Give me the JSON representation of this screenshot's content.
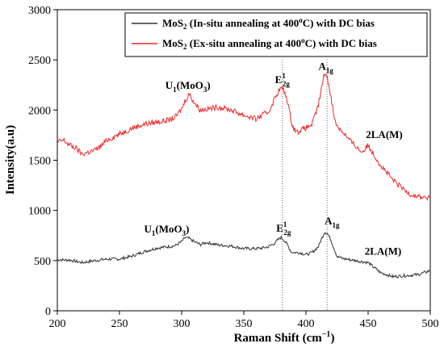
{
  "chart_data": {
    "type": "line",
    "xlabel": "Raman Shift (cm",
    "xlabel_exp": "−1",
    "xlabel_end": ")",
    "ylabel": "Intensity(a.u)",
    "xlim": [
      200,
      500
    ],
    "ylim": [
      0,
      3000
    ],
    "xticks": [
      "200",
      "250",
      "300",
      "350",
      "400",
      "450",
      "500"
    ],
    "yticks": [
      "0",
      "500",
      "1000",
      "1500",
      "2000",
      "2500",
      "3000"
    ],
    "grid": false,
    "legend_position": "top-right",
    "reference_lines_x": [
      381,
      417
    ],
    "series": [
      {
        "name_main": "MoS",
        "name_sub": "2",
        "name_rest": " (In-situ annealing at 400",
        "name_sup": "o",
        "name_end": "C) with DC bias",
        "color": "#333333",
        "x": [
          200,
          210,
          220,
          230,
          240,
          250,
          260,
          270,
          280,
          290,
          295,
          300,
          303,
          306,
          310,
          315,
          320,
          330,
          340,
          350,
          360,
          365,
          370,
          375,
          378,
          380,
          382,
          385,
          388,
          390,
          395,
          400,
          405,
          410,
          413,
          415,
          417,
          420,
          425,
          430,
          435,
          440,
          445,
          450,
          455,
          460,
          465,
          470,
          480,
          490,
          500
        ],
        "y": [
          510,
          505,
          480,
          500,
          515,
          515,
          545,
          590,
          625,
          640,
          650,
          690,
          730,
          720,
          690,
          660,
          680,
          655,
          645,
          620,
          620,
          625,
          640,
          675,
          715,
          730,
          710,
          660,
          590,
          580,
          580,
          560,
          580,
          640,
          730,
          785,
          775,
          710,
          540,
          520,
          510,
          500,
          490,
          480,
          430,
          380,
          360,
          340,
          350,
          360,
          400
        ]
      },
      {
        "name_main": "MoS",
        "name_sub": "2",
        "name_rest": " (Ex-situ annealing at 400",
        "name_sup": "o",
        "name_end": "C) with DC bias",
        "color": "#ee2a2a",
        "x": [
          200,
          205,
          210,
          215,
          220,
          225,
          230,
          235,
          240,
          250,
          260,
          270,
          280,
          290,
          295,
          300,
          303,
          306,
          310,
          315,
          320,
          330,
          340,
          350,
          355,
          360,
          365,
          370,
          375,
          378,
          380,
          382,
          385,
          388,
          390,
          393,
          395,
          400,
          405,
          410,
          413,
          415,
          417,
          420,
          423,
          425,
          428,
          430,
          435,
          440,
          445,
          450,
          455,
          460,
          465,
          470,
          475,
          480,
          485,
          490,
          495,
          500
        ],
        "y": [
          1680,
          1700,
          1650,
          1620,
          1560,
          1580,
          1600,
          1640,
          1700,
          1760,
          1820,
          1860,
          1880,
          1900,
          1930,
          2010,
          2100,
          2160,
          2080,
          2000,
          2010,
          2030,
          2000,
          1950,
          1930,
          1910,
          1950,
          1980,
          2120,
          2190,
          2220,
          2200,
          2100,
          1900,
          1820,
          1780,
          1800,
          1820,
          1860,
          2050,
          2250,
          2380,
          2330,
          2150,
          1900,
          1850,
          1800,
          1780,
          1700,
          1640,
          1580,
          1650,
          1550,
          1450,
          1380,
          1300,
          1250,
          1190,
          1160,
          1140,
          1130,
          1120
        ]
      }
    ],
    "annotations": [
      {
        "main": "U",
        "sub": "1",
        "rest": "(MoO",
        "sub2": "3",
        "end": ")",
        "x": 305,
        "y": 2210
      },
      {
        "main": "E",
        "sup": "1",
        "sub": "2g",
        "x": 381,
        "y": 2270
      },
      {
        "main": "A",
        "sub": "1g",
        "x": 416,
        "y": 2400
      },
      {
        "main": "2LA(M)",
        "x": 463,
        "y": 1720
      },
      {
        "main": "U",
        "sub": "1",
        "rest": "(MoO",
        "sub2": "3",
        "end": ")",
        "x": 288,
        "y": 780
      },
      {
        "main": "E",
        "sup": "1",
        "sub": "2g",
        "x": 382,
        "y": 790
      },
      {
        "main": "A",
        "sub": "1g",
        "x": 421,
        "y": 860
      },
      {
        "main": "2LA(M)",
        "x": 462,
        "y": 560
      }
    ]
  }
}
